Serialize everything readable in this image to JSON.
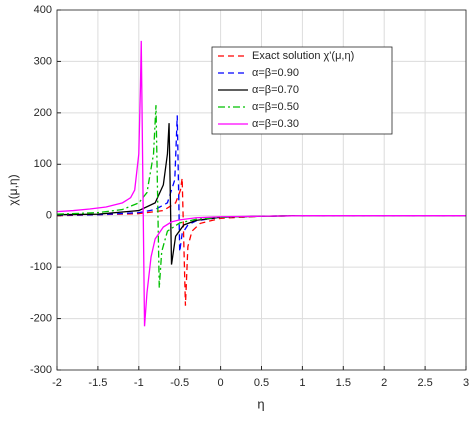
{
  "chart_data": {
    "type": "line",
    "x_label": "η",
    "y_label": "χ(μ,η)",
    "xlim": [
      -2,
      3
    ],
    "xticks": [
      -2,
      -1.5,
      -1,
      -0.5,
      0,
      0.5,
      1,
      1.5,
      2,
      2.5,
      3
    ],
    "ylim": [
      -300,
      400
    ],
    "yticks": [
      -300,
      -200,
      -100,
      0,
      100,
      200,
      300,
      400
    ],
    "grid": true,
    "legend": "upper right",
    "series": [
      {
        "name": "Exact solution  χ'(μ,η)",
        "color": "#ff0000",
        "dash": "dashed",
        "x": [
          -2,
          -1,
          -0.7,
          -0.55,
          -0.49,
          -0.47,
          -0.43,
          -0.4,
          -0.35,
          -0.25,
          0,
          0.5,
          1,
          3
        ],
        "values": [
          0,
          4,
          10,
          25,
          50,
          73,
          -175,
          -60,
          -30,
          -15,
          -5,
          -1,
          0,
          0
        ]
      },
      {
        "name": "α=β=0.90",
        "color": "#0000ff",
        "dash": "dashed",
        "x": [
          -2,
          -1.5,
          -1,
          -0.8,
          -0.65,
          -0.56,
          -0.53,
          -0.5,
          -0.47,
          -0.4,
          -0.3,
          0,
          0.5,
          1,
          3
        ],
        "values": [
          1,
          2,
          6,
          12,
          25,
          70,
          195,
          -70,
          -35,
          -18,
          -10,
          -3,
          -1,
          0,
          0
        ]
      },
      {
        "name": "α=β=0.70",
        "color": "#000000",
        "dash": "solid",
        "x": [
          -2,
          -1.5,
          -1,
          -0.8,
          -0.7,
          -0.65,
          -0.63,
          -0.6,
          -0.55,
          -0.45,
          -0.3,
          0,
          0.5,
          1,
          3
        ],
        "values": [
          2,
          3,
          10,
          25,
          60,
          120,
          180,
          -95,
          -40,
          -18,
          -9,
          -3,
          -1,
          0,
          0
        ]
      },
      {
        "name": "α=β=0.50",
        "color": "#00c000",
        "dash": "dashdot",
        "x": [
          -2,
          -1.5,
          -1.2,
          -1,
          -0.9,
          -0.82,
          -0.79,
          -0.75,
          -0.72,
          -0.65,
          -0.5,
          -0.3,
          0,
          0.5,
          1,
          3
        ],
        "values": [
          3,
          6,
          12,
          25,
          45,
          120,
          215,
          -140,
          -70,
          -30,
          -14,
          -7,
          -3,
          -1,
          0,
          0
        ]
      },
      {
        "name": "α=β=0.30",
        "color": "#ff00ff",
        "dash": "solid",
        "x": [
          -2,
          -1.8,
          -1.6,
          -1.4,
          -1.2,
          -1.1,
          -1.05,
          -1,
          -0.98,
          -0.97,
          -0.93,
          -0.9,
          -0.85,
          -0.8,
          -0.7,
          -0.6,
          -0.5,
          -0.3,
          0,
          0.5,
          1,
          2,
          3
        ],
        "values": [
          8,
          10,
          13,
          17,
          25,
          35,
          50,
          120,
          250,
          340,
          -215,
          -150,
          -80,
          -45,
          -22,
          -12,
          -8,
          -4,
          -2,
          -1,
          0,
          0,
          0
        ]
      }
    ]
  }
}
